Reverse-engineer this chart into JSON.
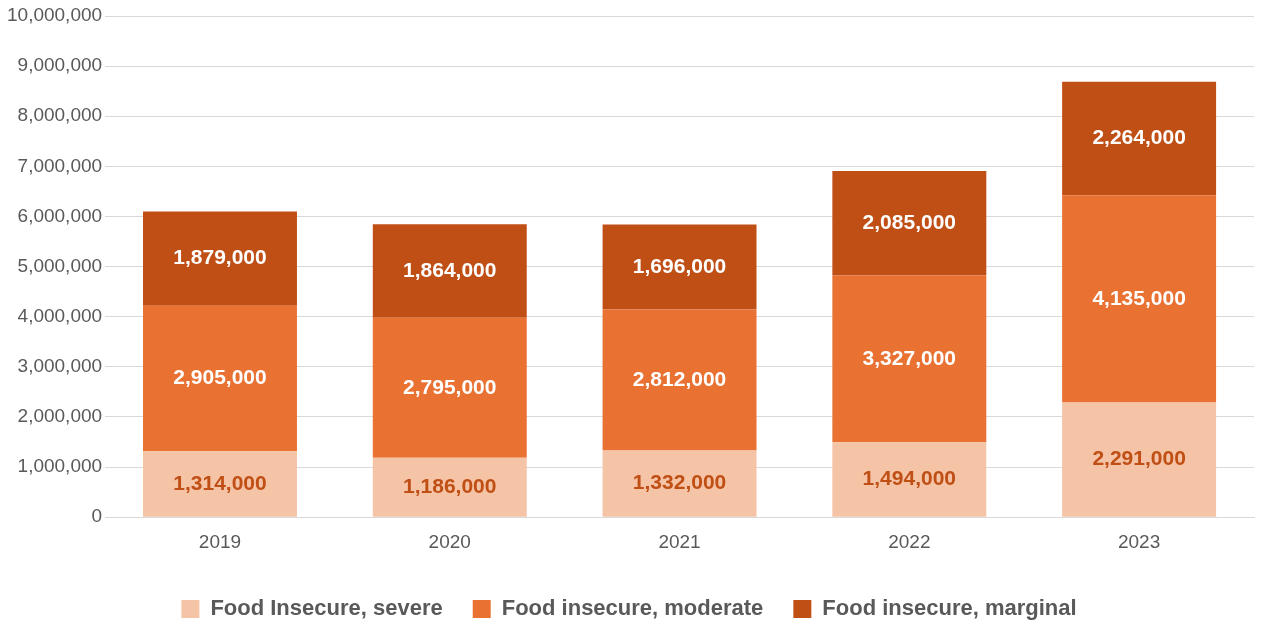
{
  "chart_data": {
    "type": "bar",
    "stacked": true,
    "categories": [
      "2019",
      "2020",
      "2021",
      "2022",
      "2023"
    ],
    "series": [
      {
        "name": "Food Insecure, severe",
        "color": "#f5c3a6",
        "values": [
          1314000,
          1186000,
          1332000,
          1494000,
          2291000
        ],
        "value_labels": [
          "1,314,000",
          "1,186,000",
          "1,332,000",
          "1,494,000",
          "2,291,000"
        ]
      },
      {
        "name": "Food insecure, moderate",
        "color": "#e97132",
        "values": [
          2905000,
          2795000,
          2812000,
          3327000,
          4135000
        ],
        "value_labels": [
          "2,905,000",
          "2,795,000",
          "2,812,000",
          "3,327,000",
          "4,135,000"
        ]
      },
      {
        "name": "Food insecure, marginal",
        "color": "#c04f15",
        "values": [
          1879000,
          1864000,
          1696000,
          2085000,
          2264000
        ],
        "value_labels": [
          "1,879,000",
          "1,864,000",
          "1,696,000",
          "2,085,000",
          "2,264,000"
        ]
      }
    ],
    "ylim": [
      0,
      10000000
    ],
    "yticks": [
      0,
      {
        "value": 1000000,
        "label": "1,000,000"
      },
      {
        "value": 2000000,
        "label": "2,000,000"
      },
      {
        "value": 3000000,
        "label": "3,000,000"
      },
      {
        "value": 4000000,
        "label": "4,000,000"
      },
      {
        "value": 5000000,
        "label": "5,000,000"
      },
      {
        "value": 6000000,
        "label": "6,000,000"
      },
      {
        "value": 7000000,
        "label": "7,000,000"
      },
      {
        "value": 8000000,
        "label": "8,000,000"
      },
      {
        "value": 9000000,
        "label": "9,000,000"
      },
      {
        "value": 10000000,
        "label": "10,000,000"
      }
    ],
    "grid": "y",
    "legend": "bottom"
  }
}
